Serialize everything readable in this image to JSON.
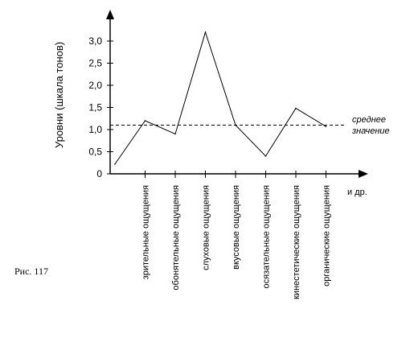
{
  "chart_data": {
    "type": "line",
    "ylabel": "Уровни (шкала тонов)",
    "xlabel": "",
    "categories": [
      "",
      "зрительные ощущения",
      "обонятельные ощущения",
      "слуховые ощущения",
      "вкусовые ощущения",
      "осязательные ощущения",
      "кинестетические ощущения",
      "органические ощущения"
    ],
    "series": [
      {
        "values": [
          0.22,
          1.2,
          0.9,
          3.2,
          1.1,
          0.4,
          1.48,
          1.07
        ]
      }
    ],
    "yticks": [
      "0",
      "0,5",
      "1,0",
      "1,5",
      "2,0",
      "2,5",
      "3,0"
    ],
    "ylim": [
      0,
      3.55
    ],
    "reference_line": {
      "value": 1.1,
      "label_line1": "среднее",
      "label_line2": "значение",
      "style": "dashed"
    },
    "x_axis_end_label": "и др.",
    "grid": false
  },
  "caption": "Рис. 117",
  "colors": {
    "line": "#000000",
    "background": "#ffffff"
  }
}
